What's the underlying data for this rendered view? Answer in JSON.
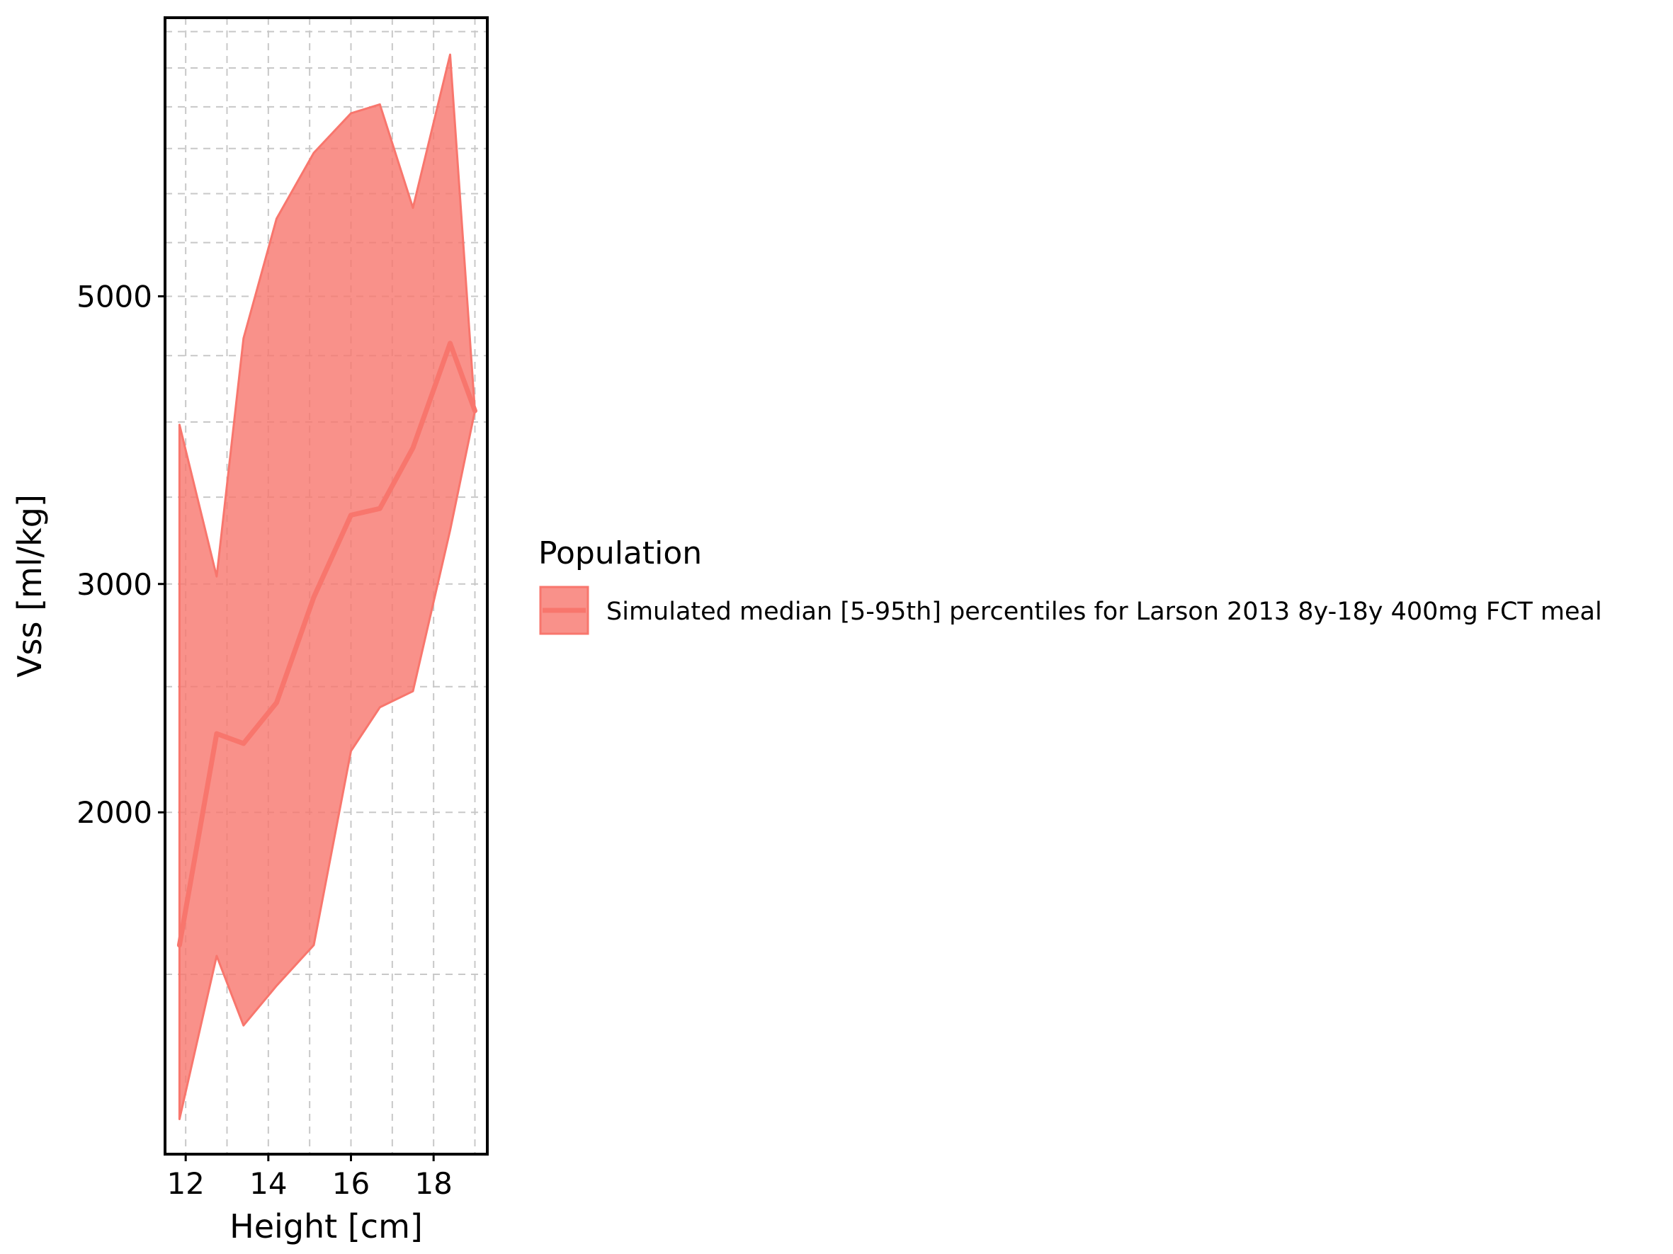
{
  "chart_data": {
    "type": "area",
    "xlabel": "Height [cm]",
    "ylabel": "Vss [ml/kg]",
    "x_ticks": [
      12,
      14,
      16,
      18
    ],
    "y_ticks": [
      2000,
      3000,
      5000
    ],
    "y_scale": "log",
    "xlim": [
      11.5,
      19.3
    ],
    "ylim": [
      1090,
      8200
    ],
    "grid": true,
    "grid_style": "dashed",
    "legend_position": "right",
    "legend_title": "Population",
    "series": [
      {
        "name": "Simulated median [5-95th] percentiles for Larson 2013 8y-18y 400mg FCT meal",
        "color": "#f8766d",
        "x": [
          11.85,
          12.75,
          13.4,
          14.2,
          15.1,
          16.0,
          16.7,
          17.5,
          18.4,
          19.0
        ],
        "median": [
          1580,
          2300,
          2260,
          2430,
          2930,
          3390,
          3430,
          3820,
          4600,
          4080
        ],
        "lower": [
          1160,
          1550,
          1370,
          1470,
          1580,
          2230,
          2410,
          2480,
          3300,
          4080
        ],
        "upper": [
          3980,
          3040,
          4640,
          5740,
          6450,
          6920,
          7030,
          5850,
          7680,
          4080
        ]
      }
    ]
  }
}
